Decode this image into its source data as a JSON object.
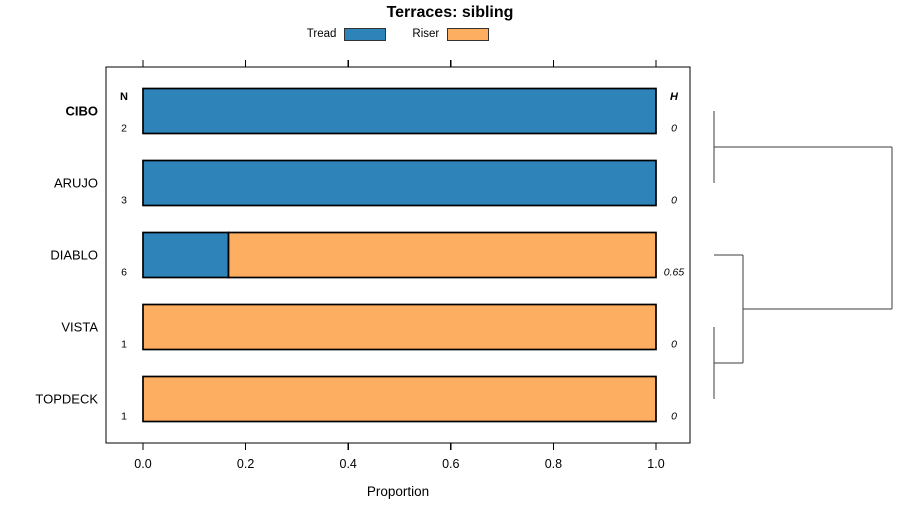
{
  "chart_data": {
    "type": "bar",
    "orientation": "horizontal",
    "stacked": true,
    "title": "Terraces: sibling",
    "xlabel": "Proportion",
    "xlim": [
      0,
      1
    ],
    "x_ticks": [
      0,
      0.2,
      0.4,
      0.6,
      0.8,
      1.0
    ],
    "x_tick_labels": [
      "0.0",
      "0.2",
      "0.4",
      "0.6",
      "0.8",
      "1.0"
    ],
    "grid": false,
    "legend_position": "top-center",
    "legend": [
      {
        "label": "Tread",
        "color": "#2e83b8"
      },
      {
        "label": "Riser",
        "color": "#fdae61"
      }
    ],
    "column_headers": {
      "left": "N",
      "right": "H"
    },
    "rows": [
      {
        "label": "CIBO",
        "bold": true,
        "n": "2",
        "h": "0",
        "segments": [
          {
            "name": "Tread",
            "value": 1.0
          }
        ]
      },
      {
        "label": "ARUJO",
        "bold": false,
        "n": "3",
        "h": "0",
        "segments": [
          {
            "name": "Tread",
            "value": 1.0
          }
        ]
      },
      {
        "label": "DIABLO",
        "bold": false,
        "n": "6",
        "h": "0.65",
        "segments": [
          {
            "name": "Tread",
            "value": 0.1667
          },
          {
            "name": "Riser",
            "value": 0.8333
          }
        ]
      },
      {
        "label": "VISTA",
        "bold": false,
        "n": "1",
        "h": "0",
        "segments": [
          {
            "name": "Riser",
            "value": 1.0
          }
        ]
      },
      {
        "label": "TOPDECK",
        "bold": false,
        "n": "1",
        "h": "0",
        "segments": [
          {
            "name": "Riser",
            "value": 1.0
          }
        ]
      }
    ],
    "dendrogram": {
      "line_color": "#3d3d3d",
      "tree": {
        "height": 1.0,
        "children": [
          {
            "height": 0,
            "children": [
              "CIBO",
              "ARUJO"
            ]
          },
          {
            "height": 0.163,
            "children": [
              "DIABLO",
              {
                "height": 0,
                "children": [
                  "VISTA",
                  "TOPDECK"
                ]
              }
            ]
          }
        ]
      }
    },
    "colors": {
      "bar_stroke": "#000000",
      "axis": "#000000"
    }
  }
}
